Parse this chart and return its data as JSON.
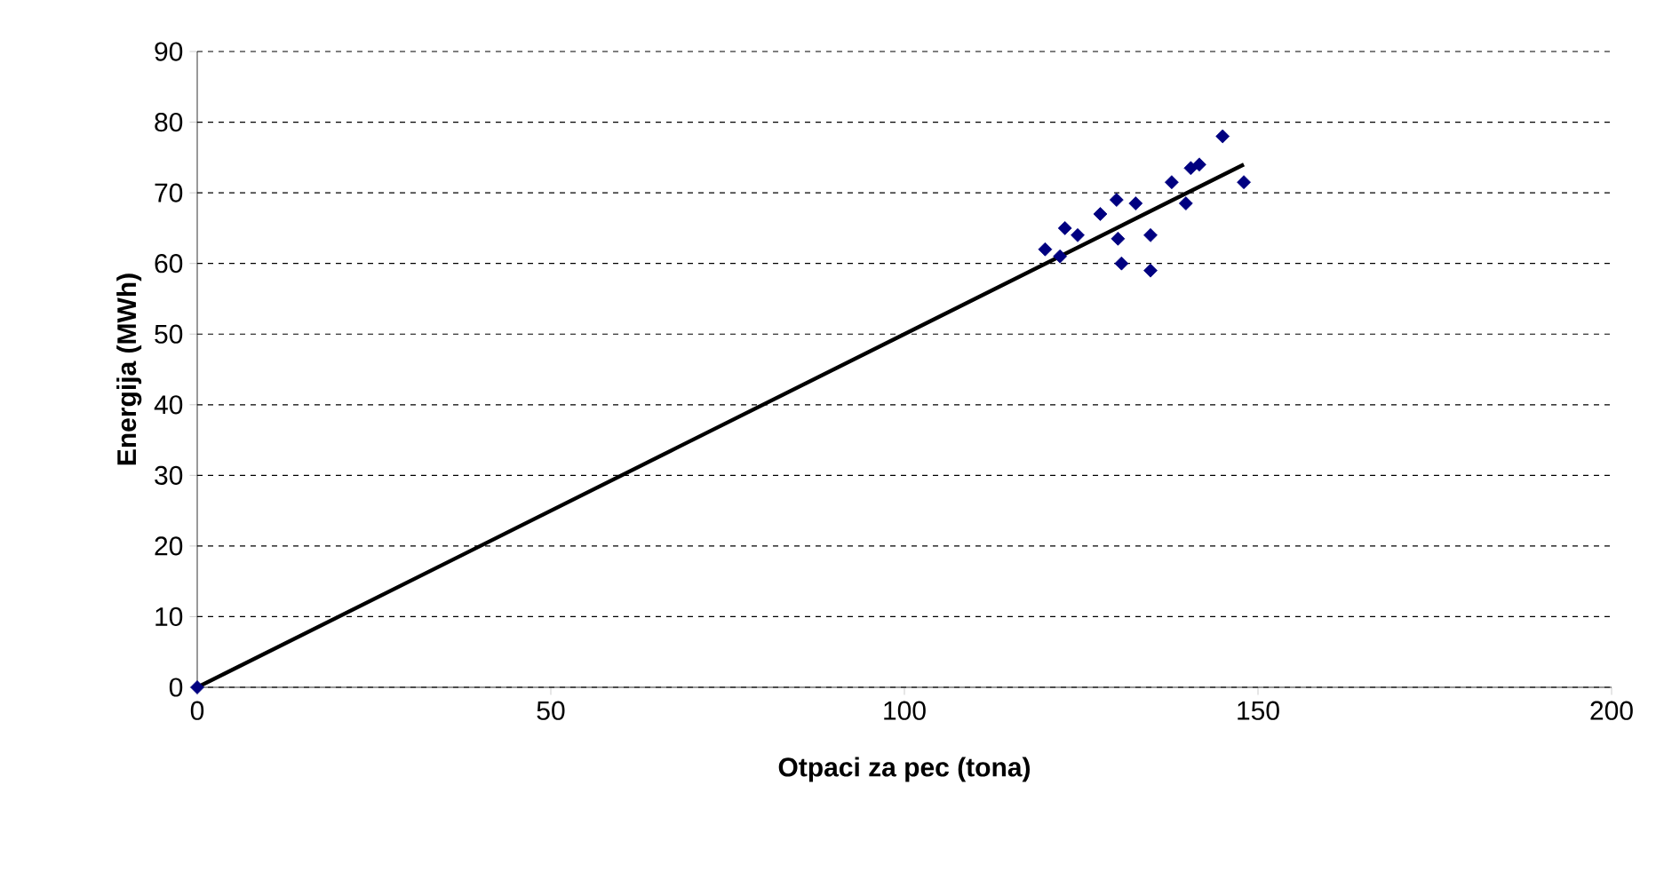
{
  "chart_data": {
    "type": "scatter",
    "xlabel": "Otpaci  za pec (tona)",
    "ylabel": "Energija (MWh)",
    "xlim": [
      0,
      200
    ],
    "ylim": [
      0,
      90
    ],
    "xticks": [
      0,
      50,
      100,
      150,
      200
    ],
    "yticks": [
      0,
      10,
      20,
      30,
      40,
      50,
      60,
      70,
      80,
      90
    ],
    "grid": "y",
    "series": [
      {
        "marker": "diamond",
        "color": "#000080",
        "x": [
          0,
          145,
          141.7,
          140.5,
          148,
          137.8,
          139.8,
          132.7,
          130,
          127.7,
          134.8,
          130.2,
          130.7,
          134.8,
          122.7,
          124.5,
          119.9,
          122
        ],
        "values": [
          0,
          78,
          74,
          73.5,
          71.5,
          71.5,
          68.5,
          68.5,
          69,
          67,
          64,
          63.5,
          60,
          59,
          65,
          64,
          62,
          61
        ]
      },
      {
        "type": "line",
        "color": "#000000",
        "x": [
          0,
          148
        ],
        "values": [
          0,
          74
        ]
      }
    ]
  }
}
